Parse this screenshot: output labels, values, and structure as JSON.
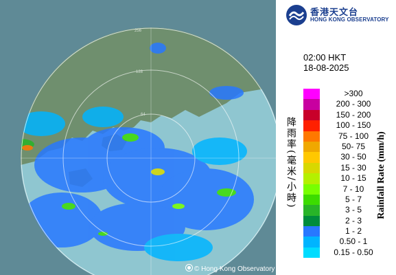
{
  "map": {
    "copyright": "© Hong Kong Observatory",
    "ring_labels": [
      "256",
      "128",
      "64"
    ]
  },
  "logo": {
    "name_zh": "香港天文台",
    "name_en": "HONG KONG OBSERVATORY"
  },
  "observation": {
    "time": "02:00 HKT",
    "date": "18-08-2025"
  },
  "legend": {
    "title_zh": "降雨率(毫米/小時)",
    "title_en": "Rainfall Rate (mm/h)",
    "items": [
      {
        "label": ">300",
        "color": "#ff00ff"
      },
      {
        "label": "200 - 300",
        "color": "#c800a0"
      },
      {
        "label": "150 - 200",
        "color": "#c8002a"
      },
      {
        "label": "100 - 150",
        "color": "#ff2000"
      },
      {
        "label": "75 - 100",
        "color": "#ff7800"
      },
      {
        "label": "50- 75",
        "color": "#f0a800"
      },
      {
        "label": "30 - 50",
        "color": "#ffc800"
      },
      {
        "label": "15 - 30",
        "color": "#d8d800"
      },
      {
        "label": "10 - 15",
        "color": "#b4f000"
      },
      {
        "label": "7 - 10",
        "color": "#78ff00"
      },
      {
        "label": "5 - 7",
        "color": "#3cdc00"
      },
      {
        "label": "3 - 5",
        "color": "#28b428"
      },
      {
        "label": "2 - 3",
        "color": "#008c3c"
      },
      {
        "label": "1 - 2",
        "color": "#2878ff"
      },
      {
        "label": "0.50 - 1",
        "color": "#00b4ff"
      },
      {
        "label": "0.15 - 0.50",
        "color": "#00dcff"
      }
    ]
  },
  "colors": {
    "sea": "#8fc6d0",
    "land": "#6f8f6e",
    "outside": "#5f8a96",
    "brand": "#1b3f8f"
  }
}
